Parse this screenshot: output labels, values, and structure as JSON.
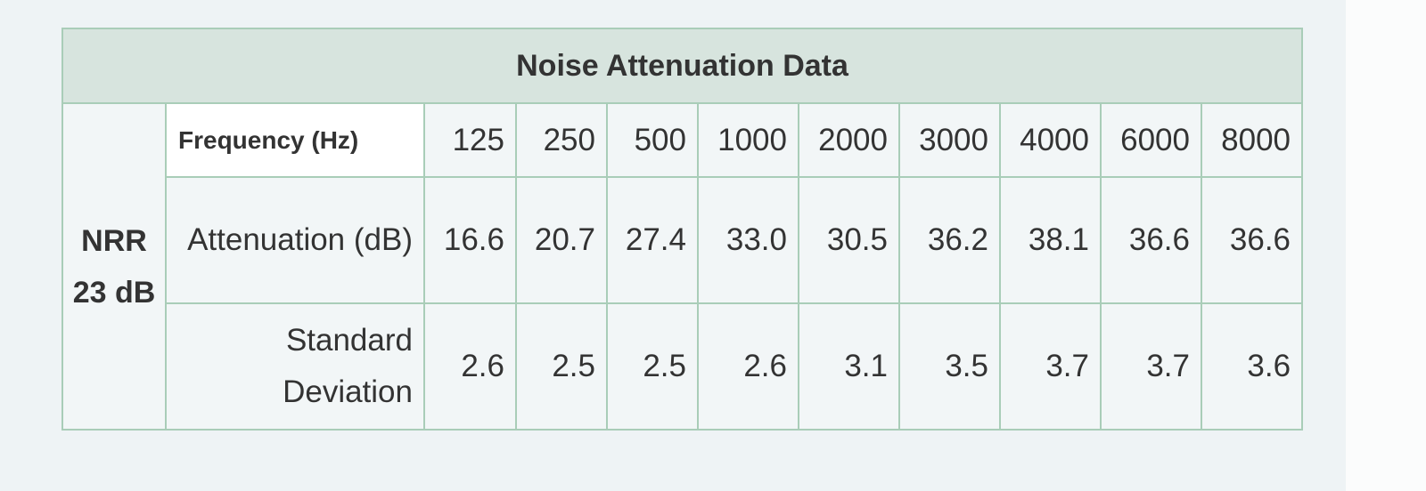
{
  "table": {
    "title": "Noise Attenuation Data",
    "nrr": "NRR 23 dB",
    "header_label": "Frequency (Hz)",
    "frequencies": [
      "125",
      "250",
      "500",
      "1000",
      "2000",
      "3000",
      "4000",
      "6000",
      "8000"
    ],
    "rows": [
      {
        "label": "Attenuation (dB)",
        "values": [
          "16.6",
          "20.7",
          "27.4",
          "33.0",
          "30.5",
          "36.2",
          "38.1",
          "36.6",
          "36.6"
        ]
      },
      {
        "label": "Standard Deviation",
        "values": [
          "2.6",
          "2.5",
          "2.5",
          "2.6",
          "3.1",
          "3.5",
          "3.7",
          "3.7",
          "3.6"
        ]
      }
    ]
  }
}
